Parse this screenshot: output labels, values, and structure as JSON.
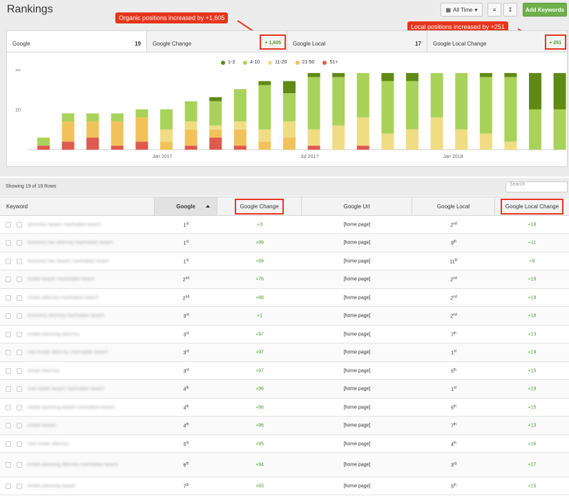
{
  "title": "Rankings",
  "toolbar": {
    "time_label": "All Time",
    "add_label": "Add Keywords"
  },
  "callouts": {
    "organic": "Organic positions increased by +1,605",
    "local": "Local positions increased by +251"
  },
  "tabs": [
    {
      "label": "Google",
      "value": "19"
    },
    {
      "label": "Google Change",
      "value": "+ 1,605"
    },
    {
      "label": "Google Local",
      "value": "17"
    },
    {
      "label": "Google Local Change",
      "value": "+ 251"
    }
  ],
  "colors": {
    "1-3": "#5f8a16",
    "4-10": "#a9d25a",
    "11-20": "#f0dd83",
    "21-50": "#f2c25a",
    "51+": "#de5a4e",
    "accent": "#e8341c",
    "green": "#6fb04a"
  },
  "chart_data": {
    "type": "bar",
    "stacked": true,
    "series_order": [
      "1-3",
      "4-10",
      "11-20",
      "21-50",
      "51+"
    ],
    "legend": [
      "1-3",
      "4-10",
      "11-20",
      "21-50",
      "51+"
    ],
    "x_tick_labels": [
      "Jan 2017",
      "Jul 2017",
      "Jan 2018"
    ],
    "ylim": [
      0,
      20
    ],
    "y_ticks": [
      10,
      20
    ],
    "bars": [
      {
        "1-3": 0,
        "4-10": 2,
        "11-20": 0,
        "21-50": 0,
        "51+": 1
      },
      {
        "1-3": 0,
        "4-10": 2,
        "11-20": 0,
        "21-50": 5,
        "51+": 2
      },
      {
        "1-3": 0,
        "4-10": 2,
        "11-20": 0,
        "21-50": 4,
        "51+": 3
      },
      {
        "1-3": 0,
        "4-10": 2,
        "11-20": 0,
        "21-50": 6,
        "51+": 1
      },
      {
        "1-3": 0,
        "4-10": 2,
        "11-20": 0,
        "21-50": 6,
        "51+": 2
      },
      {
        "1-3": 0,
        "4-10": 5,
        "11-20": 3,
        "21-50": 2,
        "51+": 0
      },
      {
        "1-3": 0,
        "4-10": 5,
        "11-20": 2,
        "21-50": 4,
        "51+": 1
      },
      {
        "1-3": 1,
        "4-10": 6,
        "11-20": 1,
        "21-50": 2,
        "51+": 3
      },
      {
        "1-3": 0,
        "4-10": 8,
        "11-20": 2,
        "21-50": 4,
        "51+": 1
      },
      {
        "1-3": 1,
        "4-10": 11,
        "11-20": 3,
        "21-50": 2,
        "51+": 0
      },
      {
        "1-3": 3,
        "4-10": 7,
        "11-20": 4,
        "21-50": 3,
        "51+": 0
      },
      {
        "1-3": 1,
        "4-10": 13,
        "11-20": 4,
        "21-50": 0,
        "51+": 1
      },
      {
        "1-3": 1,
        "4-10": 12,
        "11-20": 6,
        "21-50": 0,
        "51+": 0
      },
      {
        "1-3": 0,
        "4-10": 11,
        "11-20": 7,
        "21-50": 0,
        "51+": 1
      },
      {
        "1-3": 2,
        "4-10": 13,
        "11-20": 4,
        "21-50": 0,
        "51+": 0
      },
      {
        "1-3": 2,
        "4-10": 12,
        "11-20": 5,
        "21-50": 0,
        "51+": 0
      },
      {
        "1-3": 0,
        "4-10": 11,
        "11-20": 8,
        "21-50": 0,
        "51+": 0
      },
      {
        "1-3": 0,
        "4-10": 14,
        "11-20": 5,
        "21-50": 0,
        "51+": 0
      },
      {
        "1-3": 1,
        "4-10": 14,
        "11-20": 4,
        "21-50": 0,
        "51+": 0
      },
      {
        "1-3": 1,
        "4-10": 16,
        "11-20": 2,
        "21-50": 0,
        "51+": 0
      },
      {
        "1-3": 9,
        "4-10": 10,
        "11-20": 0,
        "21-50": 0,
        "51+": 0
      },
      {
        "1-3": 9,
        "4-10": 10,
        "11-20": 0,
        "21-50": 0,
        "51+": 0
      }
    ]
  },
  "table": {
    "row_count": "Showing 19 of 19 Rows",
    "search_placeholder": "Search",
    "headers": [
      "Keyword",
      "Google",
      "Google Change",
      "Google Url",
      "Google Local",
      "Google Local Change"
    ],
    "rows": [
      {
        "kw": "business lawyer manhattan beach",
        "g": "1",
        "gs": "st",
        "gc": "+3",
        "url": "[home page]",
        "gl": "2",
        "gls": "nd",
        "glc": "+18"
      },
      {
        "kw": "business law attorney manhattan beach",
        "g": "1",
        "gs": "st",
        "gc": "+99",
        "url": "[home page]",
        "gl": "9",
        "gls": "th",
        "glc": "+11"
      },
      {
        "kw": "business law lawyer manhattan beach",
        "g": "1",
        "gs": "st",
        "gc": "+99",
        "url": "[home page]",
        "gl": "11",
        "gls": "th",
        "glc": "+9"
      },
      {
        "kw": "estate lawyer manhattan beach",
        "g": "2",
        "gs": "nd",
        "gc": "+76",
        "url": "[home page]",
        "gl": "2",
        "gls": "nd",
        "glc": "+18"
      },
      {
        "kw": "estate attorney manhattan beach",
        "g": "2",
        "gs": "nd",
        "gc": "+98",
        "url": "[home page]",
        "gl": "2",
        "gls": "nd",
        "glc": "+18"
      },
      {
        "kw": "business attorney manhattan beach",
        "g": "3",
        "gs": "rd",
        "gc": "+1",
        "url": "[home page]",
        "gl": "2",
        "gls": "nd",
        "glc": "+18"
      },
      {
        "kw": "estate planning attorney",
        "g": "3",
        "gs": "rd",
        "gc": "+97",
        "url": "[home page]",
        "gl": "7",
        "gls": "th",
        "glc": "+13"
      },
      {
        "kw": "real estate attorney manhattan beach",
        "g": "3",
        "gs": "rd",
        "gc": "+97",
        "url": "[home page]",
        "gl": "1",
        "gls": "st",
        "glc": "+19"
      },
      {
        "kw": "estate attorney",
        "g": "3",
        "gs": "rd",
        "gc": "+97",
        "url": "[home page]",
        "gl": "5",
        "gls": "th",
        "glc": "+15"
      },
      {
        "kw": "real estate lawyer manhattan beach",
        "g": "4",
        "gs": "th",
        "gc": "+96",
        "url": "[home page]",
        "gl": "1",
        "gls": "st",
        "glc": "+19"
      },
      {
        "kw": "estate planning lawyer manhattan beach",
        "g": "4",
        "gs": "th",
        "gc": "+96",
        "url": "[home page]",
        "gl": "5",
        "gls": "th",
        "glc": "+15"
      },
      {
        "kw": "estate lawyer",
        "g": "4",
        "gs": "th",
        "gc": "+96",
        "url": "[home page]",
        "gl": "7",
        "gls": "th",
        "glc": "+13"
      },
      {
        "kw": "real estate attorney",
        "g": "5",
        "gs": "th",
        "gc": "+95",
        "url": "[home page]",
        "gl": "4",
        "gls": "th",
        "glc": "+16"
      },
      {
        "kw": "estate planning attorney manhattan beach",
        "g": "6",
        "gs": "th",
        "gc": "+94",
        "url": "[home page]",
        "gl": "3",
        "gls": "rd",
        "glc": "+17"
      },
      {
        "kw": "estate planning lawyer",
        "g": "7",
        "gs": "th",
        "gc": "+93",
        "url": "[home page]",
        "gl": "5",
        "gls": "th",
        "glc": "+15"
      }
    ]
  }
}
